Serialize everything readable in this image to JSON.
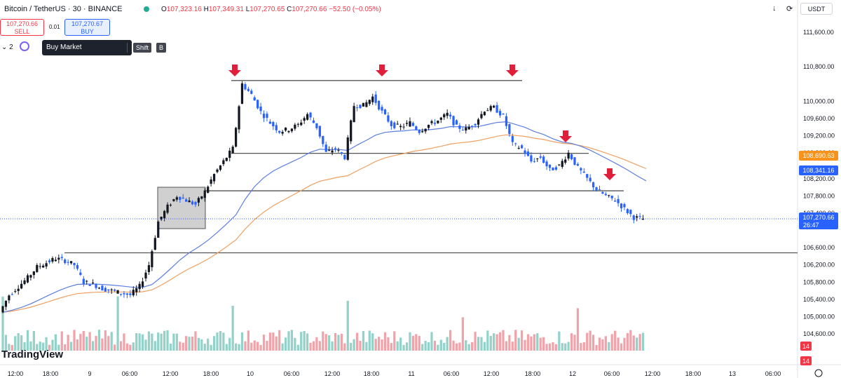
{
  "header": {
    "symbol": "Bitcoin / TetherUS · 30 · BINANCE",
    "ohlc": {
      "o_label": "O",
      "o": "107,323.16",
      "h_label": "H",
      "h": "107,349.31",
      "l_label": "L",
      "l": "107,270.65",
      "c_label": "C",
      "c": "107,270.66",
      "change": "−52.50 (−0.05%)"
    },
    "currency": "USDT"
  },
  "trade": {
    "sell_price": "107,270.66",
    "sell_label": "SELL",
    "buy_price": "107,270.67",
    "buy_label": "BUY",
    "spread": "0.01",
    "quantity": "2"
  },
  "tooltip": {
    "label": "Buy Market",
    "key1": "Shift",
    "key2": "B"
  },
  "brand": "TradingView",
  "chart_data": {
    "type": "candlestick",
    "symbol": "BTC/USDT",
    "timeframe": "30",
    "ylim": [
      104300,
      112000
    ],
    "y_ticks": [
      111600,
      110800,
      110000,
      109600,
      109200,
      108800,
      108200,
      107800,
      107400,
      106600,
      106200,
      105800,
      105400,
      105000,
      104600
    ],
    "x_ticks": [
      "12:00",
      "18:00",
      "9",
      "06:00",
      "12:00",
      "18:00",
      "10",
      "06:00",
      "12:00",
      "18:00",
      "11",
      "06:00",
      "12:00",
      "18:00",
      "12",
      "06:00",
      "12:00",
      "18:00",
      "13",
      "06:00"
    ],
    "price_labels": [
      {
        "value": 108690.63,
        "text": "108,690.63",
        "color": "#f7931a"
      },
      {
        "value": 108341.16,
        "text": "108,341.16",
        "color": "#2962ff"
      },
      {
        "value": 107270.66,
        "text": "107,270.66",
        "sub": "26:47",
        "color": "#2962ff"
      }
    ],
    "volume_badges": [
      "14",
      "14"
    ],
    "series": [
      {
        "name": "EMA fast",
        "color": "#5b7fe0"
      },
      {
        "name": "EMA slow",
        "color": "#f0a060"
      }
    ],
    "levels": [
      110480,
      108790,
      107920,
      106480
    ],
    "close_path": [
      105100,
      105500,
      105700,
      105900,
      106150,
      106250,
      106350,
      106300,
      106200,
      105800,
      105750,
      105650,
      105600,
      105550,
      105500,
      105700,
      106200,
      107200,
      107550,
      107800,
      107700,
      107600,
      107900,
      108300,
      108600,
      108900,
      110400,
      110150,
      109750,
      109500,
      109300,
      109350,
      109450,
      109700,
      109400,
      108800,
      108900,
      108700,
      109900,
      109900,
      110100,
      109750,
      109450,
      109400,
      109500,
      109300,
      109450,
      109550,
      109700,
      109400,
      109350,
      109500,
      109800,
      109850,
      109650,
      109000,
      108900,
      108600,
      108700,
      108400,
      108500,
      108800,
      108450,
      108200,
      107950,
      107800,
      107700,
      107500,
      107300,
      107270
    ]
  }
}
